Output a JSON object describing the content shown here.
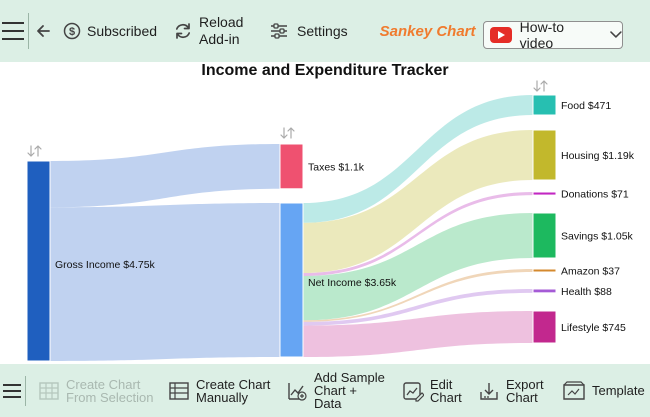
{
  "toolbar": {
    "subscribed_label": "Subscribed",
    "reload_label": "Reload Add-in",
    "settings_label": "Settings",
    "brand": "Sankey Chart",
    "howto_label": "How-to video"
  },
  "bottom_toolbar": {
    "create_from_selection": "Create Chart From Selection",
    "create_manually": "Create Chart Manually",
    "add_sample": "Add Sample Chart + Data",
    "edit_chart": "Edit Chart",
    "export_chart": "Export Chart",
    "template": "Template"
  },
  "colors": {
    "toolbar_bg": "#dcefe5",
    "brand": "#f07b2e"
  },
  "chart_data": {
    "type": "sankey",
    "title": "Income and Expenditure Tracker",
    "nodes": [
      {
        "id": "gross",
        "label": "Gross Income $4.75k",
        "value": 4750,
        "color": "#1f5fbf",
        "column": 0
      },
      {
        "id": "taxes",
        "label": "Taxes $1.1k",
        "value": 1100,
        "color": "#ef5170",
        "column": 1
      },
      {
        "id": "net",
        "label": "Net Income $3.65k",
        "value": 3650,
        "color": "#66a5f3",
        "column": 1
      },
      {
        "id": "food",
        "label": "Food $471",
        "value": 471,
        "color": "#27bfb1",
        "column": 2
      },
      {
        "id": "housing",
        "label": "Housing $1.19k",
        "value": 1190,
        "color": "#c2b82c",
        "column": 2
      },
      {
        "id": "donations",
        "label": "Donations $71",
        "value": 71,
        "color": "#c227c2",
        "column": 2
      },
      {
        "id": "savings",
        "label": "Savings $1.05k",
        "value": 1050,
        "color": "#1db95f",
        "column": 2
      },
      {
        "id": "amazon",
        "label": "Amazon $37",
        "value": 37,
        "color": "#d4892e",
        "column": 2
      },
      {
        "id": "health",
        "label": "Health $88",
        "value": 88,
        "color": "#a55bd6",
        "column": 2
      },
      {
        "id": "lifestyle",
        "label": "Lifestyle $745",
        "value": 745,
        "color": "#c2288e",
        "column": 2
      }
    ],
    "links": [
      {
        "source": "gross",
        "target": "taxes",
        "value": 1100,
        "color": "#b9cdee"
      },
      {
        "source": "gross",
        "target": "net",
        "value": 3650,
        "color": "#b9cdee"
      },
      {
        "source": "net",
        "target": "food",
        "value": 471,
        "color": "#b5e8e4"
      },
      {
        "source": "net",
        "target": "housing",
        "value": 1190,
        "color": "#e9e7b5"
      },
      {
        "source": "net",
        "target": "donations",
        "value": 71,
        "color": "#e7b5e7"
      },
      {
        "source": "net",
        "target": "savings",
        "value": 1050,
        "color": "#b3e7c6"
      },
      {
        "source": "net",
        "target": "amazon",
        "value": 37,
        "color": "#eed2b1"
      },
      {
        "source": "net",
        "target": "health",
        "value": 88,
        "color": "#ddc3ef"
      },
      {
        "source": "net",
        "target": "lifestyle",
        "value": 745,
        "color": "#ecbadc"
      }
    ]
  }
}
